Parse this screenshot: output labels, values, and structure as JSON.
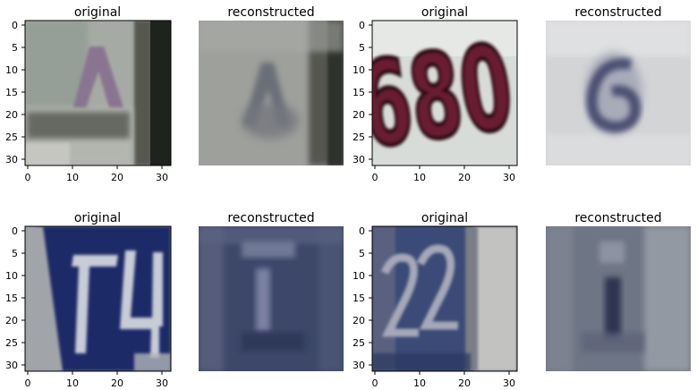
{
  "panels": [
    {
      "title": "original",
      "show_axes": true,
      "digits": "4",
      "description_colors": {
        "bg": "#a9aba7",
        "digit": "#8a7890",
        "edge": "#2a2d27"
      },
      "x_ticks": [
        "0",
        "10",
        "20",
        "30"
      ],
      "y_ticks": [
        "0",
        "5",
        "10",
        "15",
        "20",
        "25",
        "30"
      ]
    },
    {
      "title": "reconstructed",
      "show_axes": false,
      "digits": "4",
      "description_colors": {
        "bg": "#9fa09e",
        "digit": "#6f717a",
        "edge": "#3a3c38"
      }
    },
    {
      "title": "original",
      "show_axes": true,
      "digits": "680",
      "description_colors": {
        "bg": "#dcdfdc",
        "digit": "#6a1d32",
        "edge": "#f4f4f2"
      },
      "x_ticks": [
        "0",
        "10",
        "20",
        "30"
      ],
      "y_ticks": [
        "0",
        "5",
        "10",
        "15",
        "20",
        "25",
        "30"
      ]
    },
    {
      "title": "reconstructed",
      "show_axes": false,
      "digits": "6",
      "description_colors": {
        "bg": "#d2d3d6",
        "digit": "#555a7a",
        "edge": "#e8e8ea"
      }
    },
    {
      "title": "original",
      "show_axes": true,
      "digits": "74",
      "description_colors": {
        "bg": "#1f2e6a",
        "digit": "#c9cdd6",
        "edge": "#8f939a"
      },
      "x_ticks": [
        "0",
        "10",
        "20",
        "30"
      ],
      "y_ticks": [
        "0",
        "5",
        "10",
        "15",
        "20",
        "25",
        "30"
      ]
    },
    {
      "title": "reconstructed",
      "show_axes": false,
      "digits": "1",
      "description_colors": {
        "bg": "#3d4869",
        "digit": "#8e95ac",
        "edge": "#4f5978"
      }
    },
    {
      "title": "original",
      "show_axes": true,
      "digits": "22",
      "description_colors": {
        "bg": "#3a4a78",
        "digit": "#a3a7b8",
        "edge": "#c1c2c0"
      },
      "x_ticks": [
        "0",
        "10",
        "20",
        "30"
      ],
      "y_ticks": [
        "0",
        "5",
        "10",
        "15",
        "20",
        "25",
        "30"
      ]
    },
    {
      "title": "reconstructed",
      "show_axes": false,
      "digits": "1",
      "description_colors": {
        "bg": "#6b7283",
        "digit": "#2f3650",
        "edge": "#8c929a"
      }
    }
  ]
}
